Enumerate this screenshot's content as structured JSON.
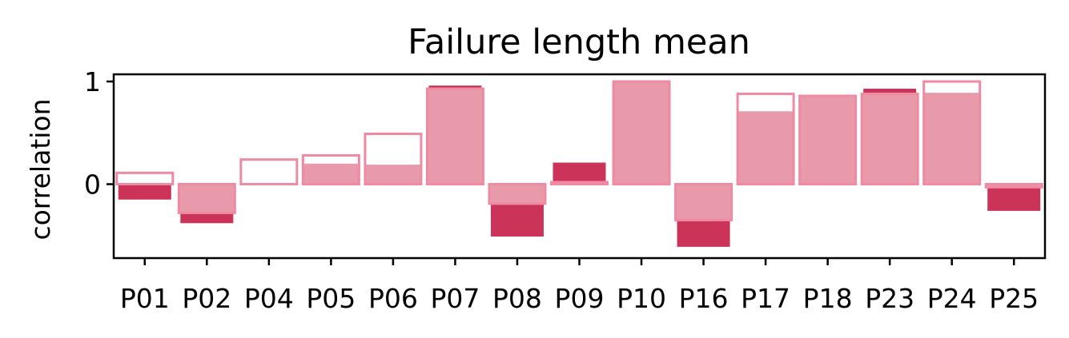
{
  "chart_data": {
    "type": "bar",
    "title": "Failure length mean",
    "xlabel": "",
    "ylabel": "correlation",
    "ylim": [
      -0.72,
      1.07
    ],
    "yticks": [
      0,
      1
    ],
    "grid": false,
    "categories": [
      "P01",
      "P02",
      "P04",
      "P05",
      "P06",
      "P07",
      "P08",
      "P09",
      "P10",
      "P16",
      "P17",
      "P18",
      "P23",
      "P24",
      "P25"
    ],
    "series": [
      {
        "style": "dark filled narrow bar",
        "color": "#cc3358",
        "values": [
          -0.15,
          -0.38,
          0.0,
          0.0,
          0.0,
          0.96,
          -0.51,
          0.21,
          0.0,
          -0.61,
          0.0,
          0.0,
          0.93,
          0.0,
          -0.26
        ]
      },
      {
        "style": "light filled wide bar",
        "color": "#e899aa",
        "values": [
          0.0,
          -0.28,
          0.0,
          0.2,
          0.19,
          0.92,
          -0.19,
          0.02,
          1.0,
          -0.35,
          0.71,
          0.86,
          0.88,
          0.89,
          -0.03
        ]
      },
      {
        "style": "outlined bar",
        "color": "#ef8aa3",
        "values": [
          0.11,
          -0.28,
          0.24,
          0.28,
          0.49,
          0.93,
          -0.19,
          0.02,
          1.0,
          -0.35,
          0.88,
          0.86,
          0.88,
          1.0,
          -0.03
        ]
      }
    ]
  }
}
